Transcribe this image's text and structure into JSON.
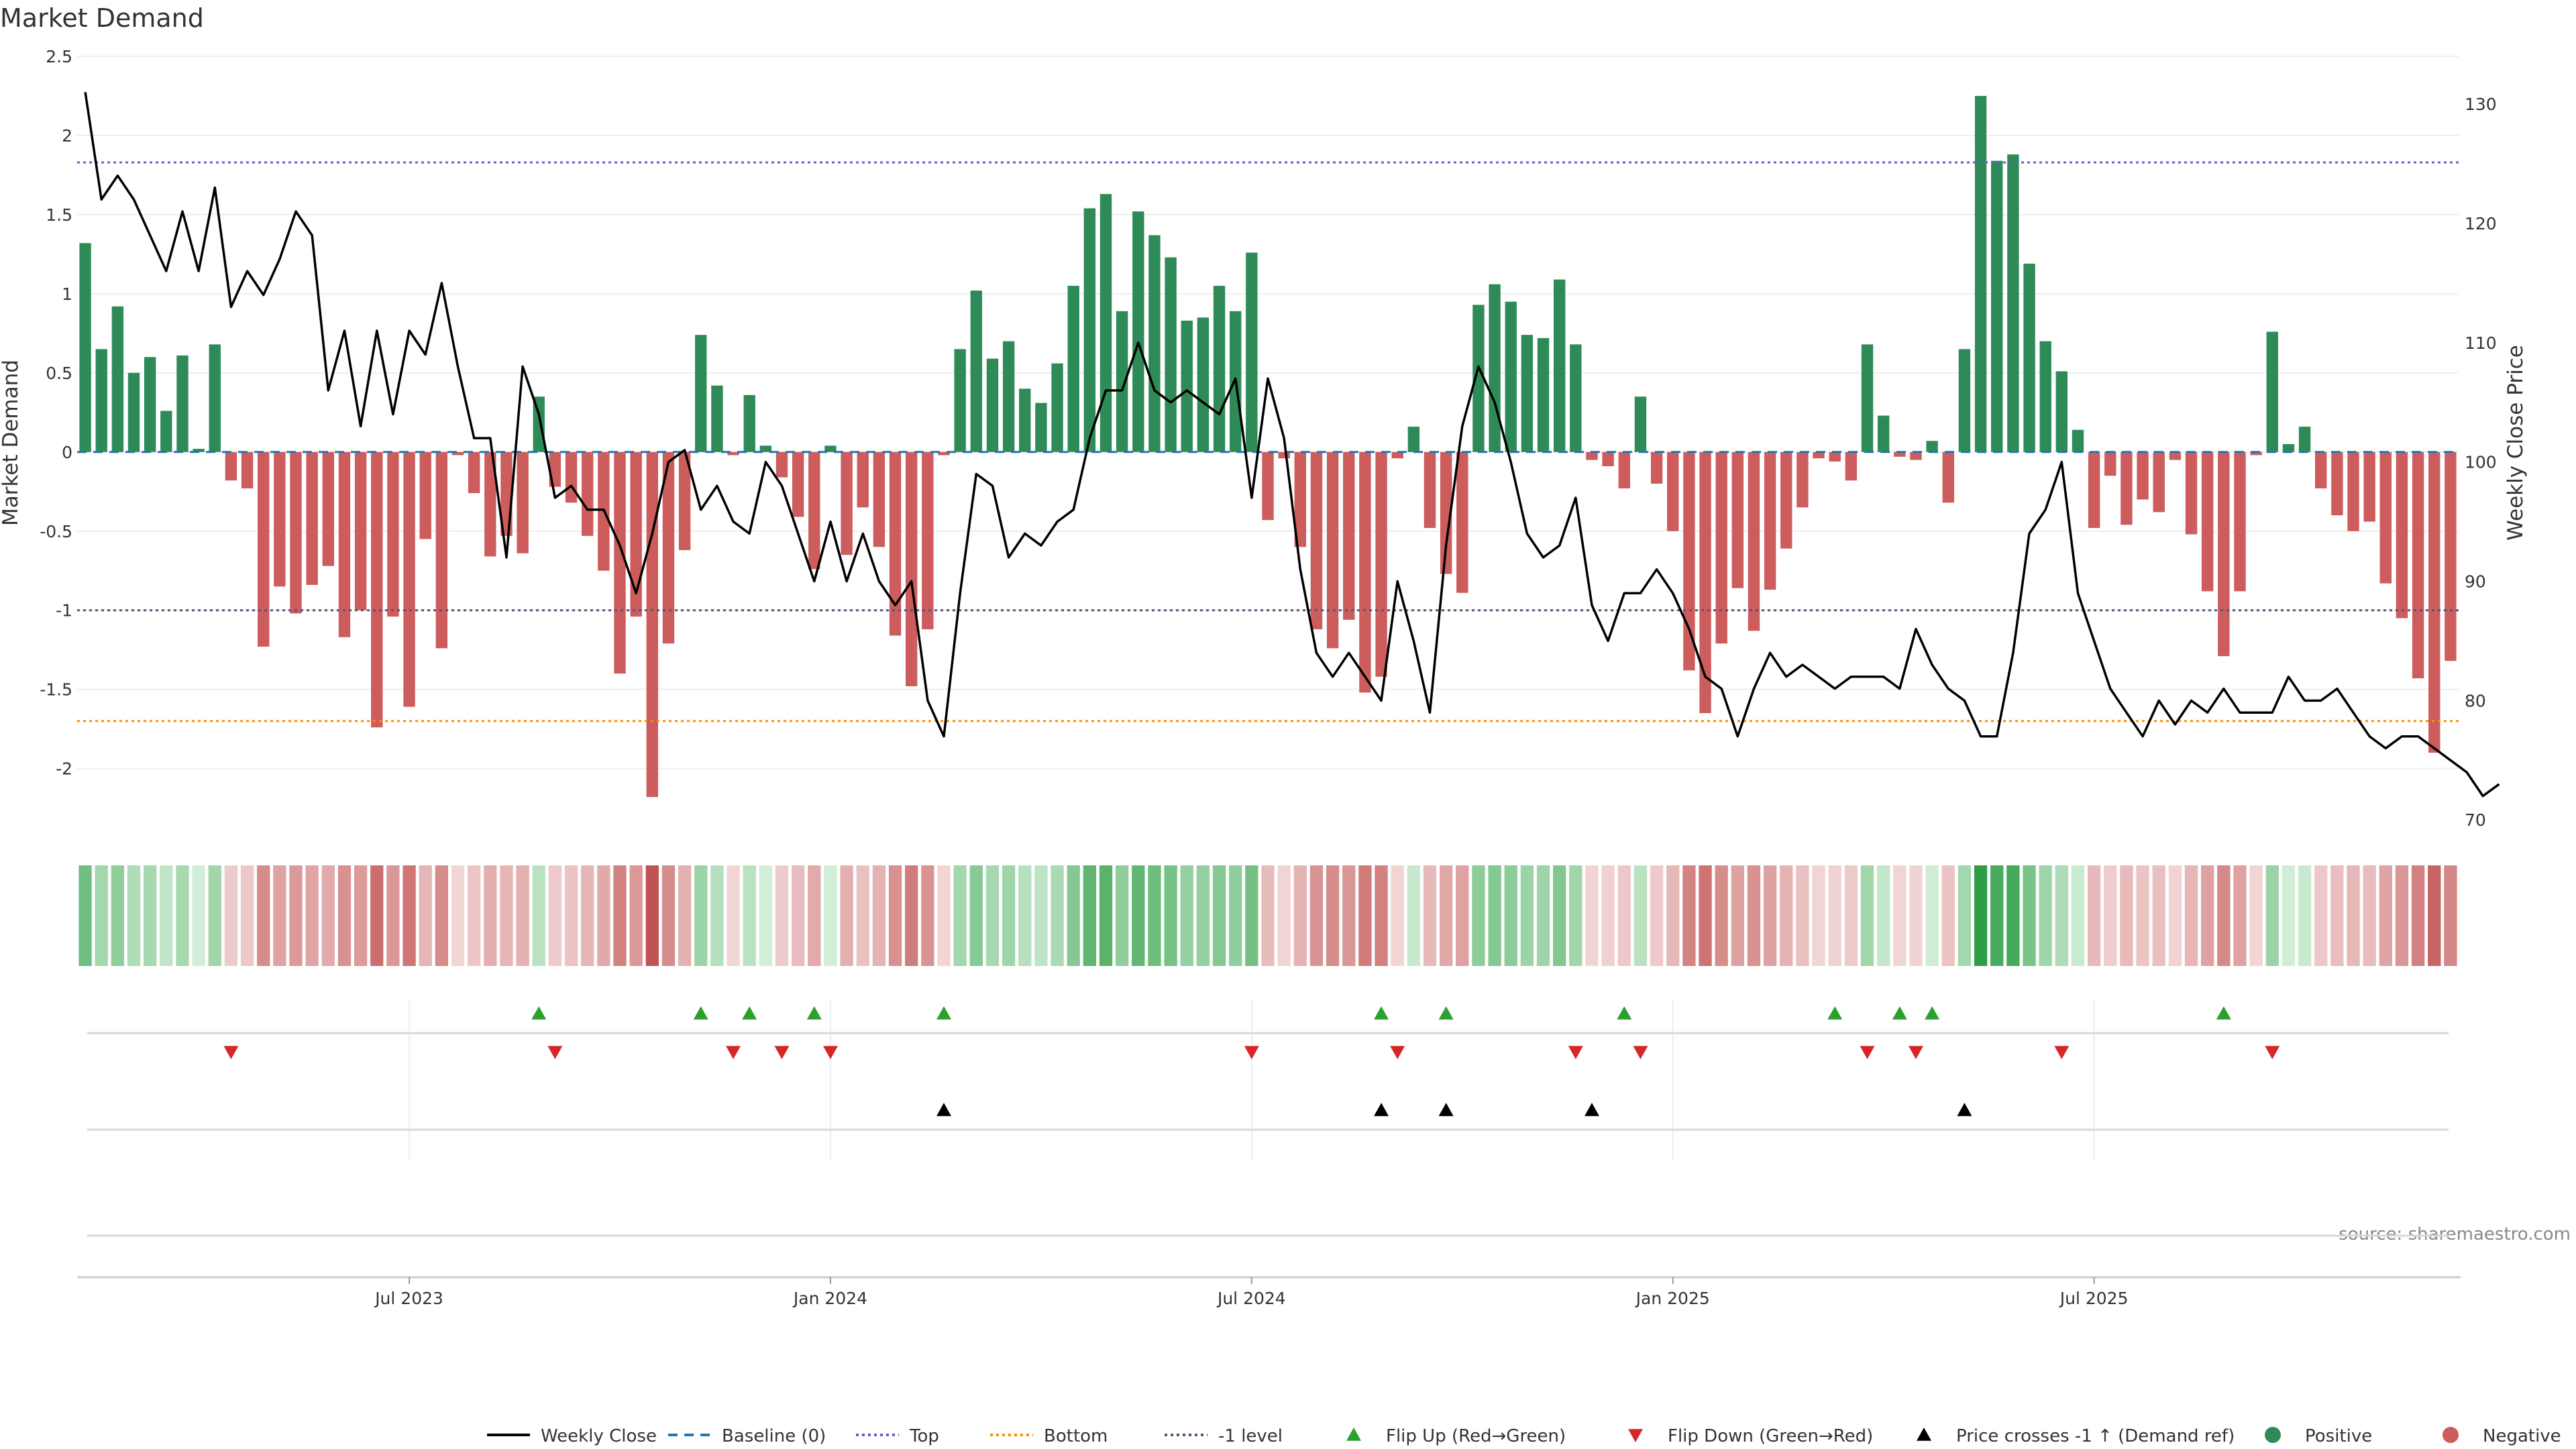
{
  "chart_data": {
    "type": "bar",
    "title": "Market Demand",
    "ylabel": "Market Demand",
    "y2label": "Weekly Close Price",
    "source": "source: sharemaestro.com",
    "ylim": [
      -2.4,
      2.5
    ],
    "y2lim": [
      69,
      134
    ],
    "yticks": [
      "2.5",
      "2",
      "1.5",
      "1",
      "0.5",
      "0",
      "-0.5",
      "-1",
      "-1.5",
      "-2"
    ],
    "y2ticks": [
      "130",
      "120",
      "110",
      "100",
      "90",
      "80",
      "70"
    ],
    "xticks": [
      "Jul 2023",
      "Jan 2024",
      "Jul 2024",
      "Jan 2025",
      "Jul 2025"
    ],
    "xtick_index": [
      20,
      46,
      72,
      98,
      124
    ],
    "reference_lines": {
      "top": 1.83,
      "bottom": -1.7,
      "minus_one": -1.0
    },
    "demand": [
      1.32,
      0.65,
      0.92,
      0.5,
      0.6,
      0.26,
      0.61,
      0.02,
      0.68,
      -0.18,
      -0.23,
      -1.23,
      -0.85,
      -1.02,
      -0.84,
      -0.72,
      -1.17,
      -1.0,
      -1.74,
      -1.04,
      -1.61,
      -0.55,
      -1.24,
      -0.02,
      -0.26,
      -0.66,
      -0.53,
      -0.64,
      0.35,
      -0.22,
      -0.32,
      -0.53,
      -0.75,
      -1.4,
      -1.04,
      -2.18,
      -1.21,
      -0.62,
      0.74,
      0.42,
      -0.02,
      0.36,
      0.04,
      -0.16,
      -0.41,
      -0.74,
      0.04,
      -0.65,
      -0.35,
      -0.6,
      -1.16,
      -1.48,
      -1.12,
      -0.02,
      0.65,
      1.02,
      0.59,
      0.7,
      0.4,
      0.31,
      0.56,
      1.05,
      1.54,
      1.63,
      0.89,
      1.52,
      1.37,
      1.23,
      0.83,
      0.85,
      1.05,
      0.89,
      1.26,
      -0.43,
      -0.04,
      -0.6,
      -1.12,
      -1.24,
      -1.06,
      -1.52,
      -1.42,
      -0.04,
      0.16,
      -0.48,
      -0.77,
      -0.89,
      0.93,
      1.06,
      0.95,
      0.74,
      0.72,
      1.09,
      0.68,
      -0.05,
      -0.09,
      -0.23,
      0.35,
      -0.2,
      -0.5,
      -1.38,
      -1.65,
      -1.21,
      -0.86,
      -1.13,
      -0.87,
      -0.61,
      -0.35,
      -0.04,
      -0.06,
      -0.18,
      0.68,
      0.23,
      -0.03,
      -0.05,
      0.07,
      -0.32,
      0.65,
      2.25,
      1.84,
      1.88,
      1.19,
      0.7,
      0.51,
      0.14,
      -0.48,
      -0.15,
      -0.46,
      -0.3,
      -0.38,
      -0.05,
      -0.52,
      -0.88,
      -1.29,
      -0.88,
      -0.02,
      0.76,
      0.05,
      0.16,
      -0.23,
      -0.4,
      -0.5,
      -0.44,
      -0.83,
      -1.05,
      -1.43,
      -1.9,
      -1.32
    ],
    "close": [
      131,
      122,
      124,
      122,
      119,
      116,
      121,
      116,
      123,
      113,
      116,
      114,
      117,
      121,
      119,
      106,
      111,
      103,
      111,
      104,
      111,
      109,
      115,
      108,
      102,
      102,
      92,
      108,
      104,
      97,
      98,
      96,
      96,
      93,
      89,
      94,
      100,
      101,
      96,
      98,
      95,
      94,
      100,
      98,
      94,
      90,
      95,
      90,
      94,
      90,
      88,
      90,
      80,
      77,
      89,
      99,
      98,
      92,
      94,
      93,
      95,
      96,
      102,
      106,
      106,
      110,
      106,
      105,
      106,
      105,
      104,
      107,
      97,
      107,
      102,
      91,
      84,
      82,
      84,
      82,
      80,
      90,
      85,
      79,
      93,
      103,
      108,
      105,
      100,
      94,
      92,
      93,
      97,
      88,
      85,
      89,
      89,
      91,
      89,
      86,
      82,
      81,
      77,
      81,
      84,
      82,
      83,
      82,
      81,
      82,
      82,
      82,
      81,
      86,
      83,
      81,
      80,
      77,
      77,
      84,
      94,
      96,
      100,
      89,
      85,
      81,
      79,
      77,
      80,
      78,
      80,
      79,
      81,
      79,
      79,
      79,
      82,
      80,
      80,
      81,
      79,
      77,
      76,
      77,
      77,
      76,
      75,
      74,
      72,
      73
    ],
    "flip_up_index": [
      28,
      38,
      41,
      45,
      53,
      80,
      84,
      95,
      108,
      112,
      114,
      132
    ],
    "flip_down_index": [
      9,
      29,
      40,
      43,
      46,
      72,
      81,
      92,
      96,
      110,
      113,
      122,
      135
    ],
    "price_cross_index": [
      53,
      80,
      84,
      93,
      116
    ],
    "legend": [
      "Weekly Close",
      "Baseline (0)",
      "Top",
      "Bottom",
      "-1 level",
      "Flip Up (Red→Green)",
      "Flip Down (Green→Red)",
      "Price crosses -1 ↑ (Demand ref)",
      "Positive",
      "Negative"
    ],
    "colors": {
      "positive": "#2e8b57",
      "negative": "#cd5c5c",
      "close": "#000000",
      "baseline": "#1f77b4",
      "top": "#6a5acd",
      "bottom": "#ff8c00",
      "minus_one": "#555577",
      "flip_up": "#2ca02c",
      "flip_down": "#d62728",
      "cross": "#000000",
      "heat_pos_dark": "#2e9e45",
      "heat_pos_light": "#d4efd9",
      "heat_neg_dark": "#c25252",
      "heat_neg_light": "#f2d6d6"
    }
  }
}
